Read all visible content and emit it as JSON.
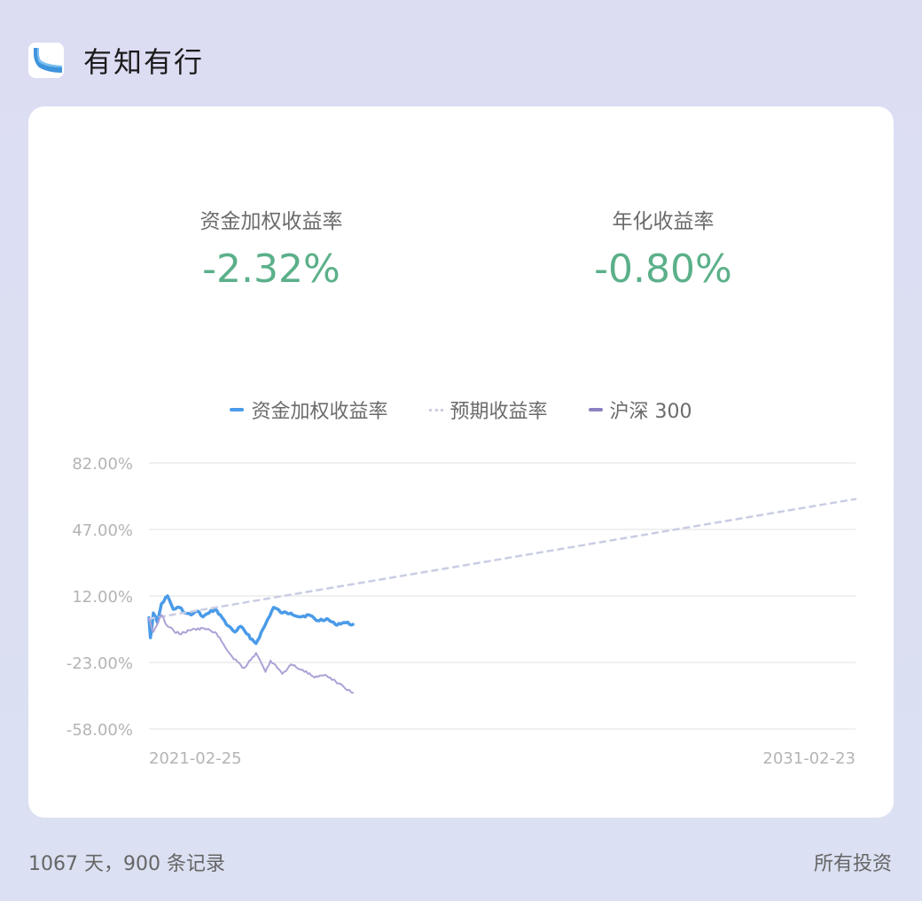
{
  "app": {
    "title": "有知有行"
  },
  "metrics": [
    {
      "label": "资金加权收益率",
      "value": "-2.32%"
    },
    {
      "label": "年化收益率",
      "value": "-0.80%"
    }
  ],
  "footer": {
    "summary": "1067 天，900 条记录",
    "link": "所有投资"
  },
  "colors": {
    "positive_green": "#5bb08a",
    "series_blue": "#4a9be8",
    "series_purple": "#aca2d6",
    "expected_dash": "#c9cde3"
  },
  "chart_data": {
    "type": "line",
    "legend": [
      "资金加权收益率",
      "预期收益率",
      "沪深 300"
    ],
    "legend_placement": "top-center",
    "y_ticks": [
      "82.00%",
      "47.00%",
      "12.00%",
      "-23.00%",
      "-58.00%"
    ],
    "x_ticks": [
      "2021-02-25",
      "2031-02-23"
    ],
    "ylim": [
      -58,
      82
    ],
    "xlim": [
      "2021-02-25",
      "2031-02-23"
    ],
    "grid": true,
    "series": [
      {
        "name": "资金加权收益率",
        "style": "solid",
        "x": [
          "2021-02-25",
          "2021-03-05",
          "2021-03-20",
          "2021-04-10",
          "2021-05-01",
          "2021-06-01",
          "2021-07-01",
          "2021-08-01",
          "2021-09-01",
          "2021-10-01",
          "2021-11-01",
          "2021-12-01",
          "2022-01-01",
          "2022-02-01",
          "2022-03-01",
          "2022-04-01",
          "2022-04-26",
          "2022-05-15",
          "2022-06-15",
          "2022-07-15",
          "2022-09-01",
          "2022-10-15",
          "2022-12-01",
          "2023-01-15",
          "2023-03-01",
          "2023-04-15",
          "2023-06-01",
          "2023-07-15",
          "2023-09-01",
          "2023-10-15",
          "2023-12-01",
          "2024-01-15"
        ],
        "values": [
          0.5,
          -10,
          3,
          -2,
          8,
          12,
          5,
          6,
          3,
          2,
          4,
          1,
          3,
          5,
          2,
          -3,
          -5,
          -7,
          -4,
          -8,
          -13,
          -4,
          6,
          3,
          3,
          1,
          2,
          -1,
          0,
          -3,
          -2,
          -3
        ]
      },
      {
        "name": "预期收益率",
        "style": "dashed",
        "x": [
          "2021-02-25",
          "2031-02-23"
        ],
        "values": [
          0,
          63
        ]
      },
      {
        "name": "沪深 300",
        "style": "solid",
        "x": [
          "2021-02-25",
          "2021-03-20",
          "2021-05-01",
          "2021-06-01",
          "2021-08-01",
          "2021-10-01",
          "2021-12-01",
          "2022-02-01",
          "2022-03-15",
          "2022-05-01",
          "2022-07-01",
          "2022-09-01",
          "2022-10-20",
          "2022-11-15",
          "2023-01-15",
          "2023-03-01",
          "2023-05-01",
          "2023-07-01",
          "2023-09-01",
          "2023-11-01",
          "2024-01-15"
        ],
        "values": [
          0,
          -7,
          2,
          -4,
          -8,
          -6,
          -5,
          -7,
          -13,
          -20,
          -26,
          -18,
          -28,
          -22,
          -29,
          -24,
          -27,
          -31,
          -30,
          -34,
          -39
        ]
      }
    ]
  }
}
